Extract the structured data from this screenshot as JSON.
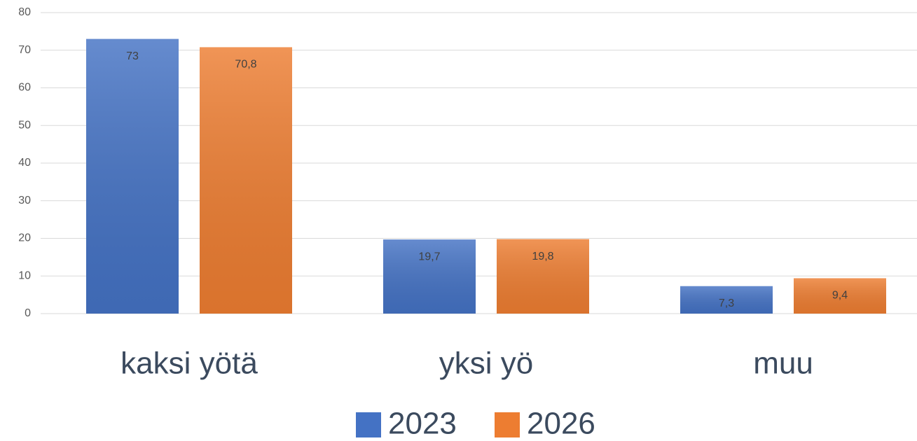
{
  "chart_data": {
    "type": "bar",
    "categories": [
      "kaksi yötä",
      "yksi yö",
      "muu"
    ],
    "series": [
      {
        "name": "2023",
        "color": "#4472c4",
        "values": [
          73,
          19.7,
          7.3
        ],
        "value_labels": [
          "73",
          "19,7",
          "7,3"
        ]
      },
      {
        "name": "2026",
        "color": "#ed7d31",
        "values": [
          70.8,
          19.8,
          9.4
        ],
        "value_labels": [
          "70,8",
          "19,8",
          "9,4"
        ]
      }
    ],
    "ylim": [
      0,
      80
    ],
    "yticks": [
      0,
      10,
      20,
      30,
      40,
      50,
      60,
      70,
      80
    ],
    "grid": true,
    "legend": "bottom"
  }
}
